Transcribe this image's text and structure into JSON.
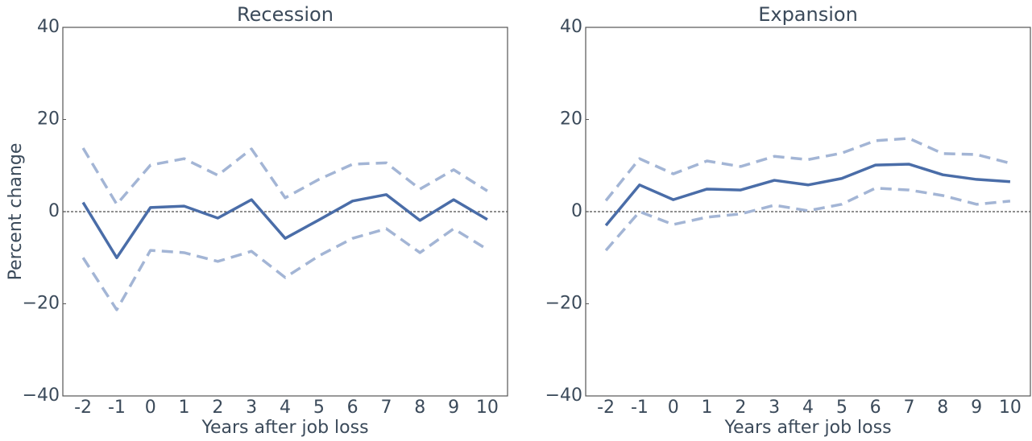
{
  "chart_data": [
    {
      "type": "line",
      "title": "Recession",
      "x_label": "Years after job loss",
      "y_label": "Percent change",
      "categories": [
        "-2",
        "-1",
        "0",
        "1",
        "2",
        "3",
        "4",
        "5",
        "6",
        "7",
        "8",
        "9",
        "10"
      ],
      "series": [
        {
          "color": "#a3b5d5",
          "dash": true,
          "values": [
            13.8,
            1.6,
            10.1,
            11.5,
            7.9,
            13.6,
            3.0,
            7.0,
            10.3,
            10.6,
            4.9,
            9.1,
            4.5
          ]
        },
        {
          "color": "#a3b5d5",
          "dash": true,
          "values": [
            -10,
            -21.3,
            -8.4,
            -8.9,
            -10.8,
            -8.6,
            -14.3,
            -9.6,
            -5.8,
            -3.7,
            -8.9,
            -3.7,
            -8.2
          ]
        },
        {
          "color": "#4a6da8",
          "dash": false,
          "values": [
            2,
            -10,
            0.9,
            1.2,
            -1.4,
            2.6,
            -5.8,
            -1.8,
            2.3,
            3.7,
            -1.9,
            2.6,
            -1.7
          ]
        }
      ],
      "reference_line": 0,
      "ylim": [
        -40,
        40
      ],
      "yticks": [
        {
          "value": -40,
          "label": "−40"
        },
        {
          "value": -20,
          "label": "−20"
        },
        0,
        20,
        40
      ]
    },
    {
      "type": "line",
      "title": "Expansion",
      "x_label": "Years after job loss",
      "categories": [
        "-2",
        "-1",
        "0",
        "1",
        "2",
        "3",
        "4",
        "5",
        "6",
        "7",
        "8",
        "9",
        "10"
      ],
      "series": [
        {
          "color": "#a3b5d5",
          "dash": true,
          "values": [
            2.4,
            11.5,
            8.2,
            11.0,
            9.8,
            12.0,
            11.3,
            12.7,
            15.4,
            15.9,
            12.6,
            12.4,
            10.5
          ]
        },
        {
          "color": "#a3b5d5",
          "dash": true,
          "values": [
            -8.4,
            0,
            -2.8,
            -1.2,
            -0.5,
            1.4,
            0.2,
            1.6,
            5.1,
            4.7,
            3.5,
            1.6,
            2.3
          ]
        },
        {
          "color": "#4a6da8",
          "dash": false,
          "values": [
            -3.0,
            5.8,
            2.6,
            4.9,
            4.7,
            6.8,
            5.8,
            7.2,
            10.1,
            10.3,
            8.0,
            7.0,
            6.5
          ]
        }
      ],
      "reference_line": 0,
      "ylim": [
        -40,
        40
      ],
      "yticks": [
        {
          "value": -40,
          "label": "−40"
        },
        {
          "value": -20,
          "label": "−20"
        },
        0,
        20,
        40
      ]
    }
  ]
}
